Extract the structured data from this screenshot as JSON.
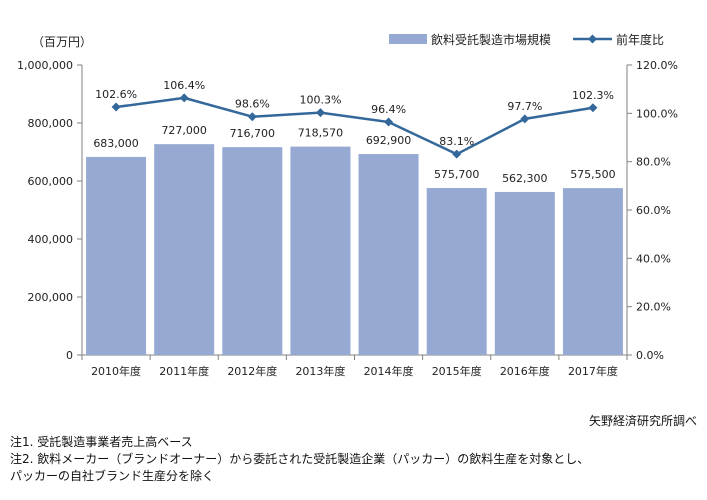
{
  "chart_data": {
    "type": "bar",
    "unit_label": "（百万円）",
    "categories": [
      "2010年度",
      "2011年度",
      "2012年度",
      "2013年度",
      "2014年度",
      "2015年度",
      "2016年度",
      "2017年度"
    ],
    "series": [
      {
        "name": "飲料受託製造市場規模",
        "type": "bar",
        "axis": "left",
        "color": "#95a9d2",
        "values": [
          683000,
          727000,
          716700,
          718570,
          692900,
          575700,
          562300,
          575500
        ],
        "labels": [
          "683,000",
          "727,000",
          "716,700",
          "718,570",
          "692,900",
          "575,700",
          "562,300",
          "575,500"
        ]
      },
      {
        "name": "前年度比",
        "type": "line",
        "axis": "right",
        "color": "#35689a",
        "values": [
          102.6,
          106.4,
          98.6,
          100.3,
          96.4,
          83.1,
          97.7,
          102.3
        ],
        "labels": [
          "102.6%",
          "106.4%",
          "98.6%",
          "100.3%",
          "96.4%",
          "83.1%",
          "97.7%",
          "102.3%"
        ]
      }
    ],
    "y_left": {
      "min": 0,
      "max": 1000000,
      "ticks": [
        0,
        200000,
        400000,
        600000,
        800000,
        1000000
      ],
      "tick_labels": [
        "0",
        "200,000",
        "400,000",
        "600,000",
        "800,000",
        "1,000,000"
      ]
    },
    "y_right": {
      "min": 0,
      "max": 120,
      "ticks": [
        0,
        20,
        40,
        60,
        80,
        100,
        120
      ],
      "tick_labels": [
        "0.0%",
        "20.0%",
        "40.0%",
        "60.0%",
        "80.0%",
        "100.0%",
        "120.0%"
      ]
    },
    "grid": false,
    "legend": "top-right"
  },
  "source": "矢野経済研究所調べ",
  "notes": [
    "注1. 受託製造事業者売上高ベース",
    "注2. 飲料メーカー（ブランドオーナー）から委託された受託製造企業（パッカー）の飲料生産を対象とし、",
    "パッカーの自社ブランド生産分を除く"
  ]
}
